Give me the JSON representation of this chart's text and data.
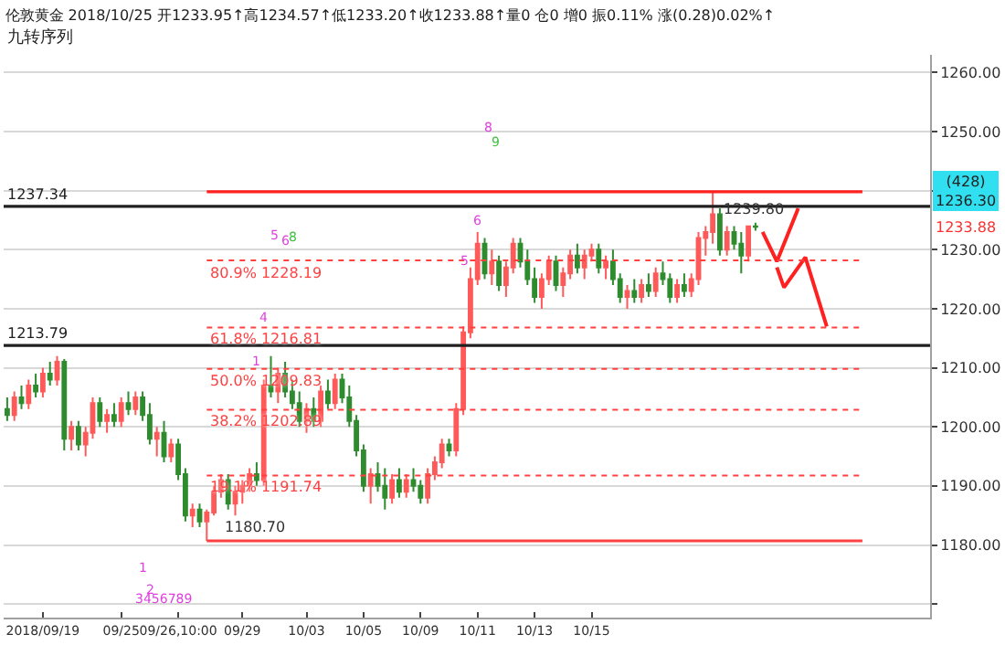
{
  "chart_data": {
    "type": "candlestick",
    "title": "伦敦黄金 2018/10/25 开1233.95↑高1234.57↑低1233.20↑收1233.88↑量0 仓0 增0 振0.11% 涨(0.28)0.02%↑",
    "subtitle": "九转序列",
    "categories": [
      null,
      null,
      null,
      null,
      null,
      "2018/09/19",
      null,
      null,
      null,
      null,
      null,
      null,
      null,
      null,
      null,
      null,
      "09/25",
      null,
      null,
      null,
      null,
      null,
      null,
      null,
      "09/26,10:00",
      null,
      null,
      null,
      null,
      null,
      null,
      null,
      null,
      "09/29",
      null,
      null,
      null,
      null,
      null,
      null,
      null,
      null,
      "10/03",
      null,
      null,
      null,
      null,
      null,
      null,
      null,
      "10/05",
      null,
      null,
      null,
      null,
      null,
      null,
      null,
      "10/09",
      null,
      null,
      null,
      null,
      null,
      null,
      null,
      "10/11",
      null,
      null,
      null,
      null,
      null,
      null,
      null,
      "10/13",
      null,
      null,
      null,
      null,
      null,
      null,
      null,
      "10/15",
      null,
      null,
      null,
      null,
      null,
      null,
      null,
      null,
      null,
      null,
      null,
      null,
      null,
      null,
      null,
      null,
      null,
      null,
      null,
      null,
      null,
      null,
      null,
      null,
      null,
      null,
      null,
      null,
      null,
      null,
      null,
      null,
      null,
      null,
      null,
      null,
      null,
      null,
      null,
      null,
      null,
      null,
      null,
      null,
      null,
      null,
      null
    ],
    "ohlc": [
      [
        1203,
        1205,
        1201,
        1202
      ],
      [
        1202,
        1206,
        1201,
        1205
      ],
      [
        1205,
        1207,
        1203,
        1204
      ],
      [
        1204,
        1208,
        1203,
        1207
      ],
      [
        1207,
        1209,
        1205,
        1206
      ],
      [
        1206,
        1210,
        1205,
        1209
      ],
      [
        1209,
        1211,
        1207,
        1208
      ],
      [
        1208,
        1212,
        1207,
        1211
      ],
      [
        1211,
        1211.5,
        1196,
        1198
      ],
      [
        1198,
        1201,
        1196,
        1200
      ],
      [
        1200,
        1201,
        1196,
        1197
      ],
      [
        1197,
        1200,
        1195,
        1199
      ],
      [
        1199,
        1205,
        1198,
        1204
      ],
      [
        1204,
        1205,
        1200,
        1201
      ],
      [
        1201,
        1203,
        1199,
        1202
      ],
      [
        1202,
        1204,
        1200,
        1201
      ],
      [
        1201,
        1205,
        1200,
        1204
      ],
      [
        1204,
        1206,
        1202,
        1203
      ],
      [
        1203,
        1206,
        1202,
        1205
      ],
      [
        1205,
        1206,
        1201,
        1202
      ],
      [
        1202,
        1204,
        1197,
        1198
      ],
      [
        1198,
        1200,
        1195,
        1199
      ],
      [
        1199,
        1201,
        1194,
        1195
      ],
      [
        1195,
        1198,
        1194,
        1197
      ],
      [
        1197,
        1198,
        1191,
        1192
      ],
      [
        1192,
        1193,
        1184,
        1185
      ],
      [
        1185,
        1187,
        1183,
        1186
      ],
      [
        1186,
        1187,
        1183,
        1184
      ],
      [
        1184,
        1186,
        1180.7,
        1185.5
      ],
      [
        1185.5,
        1190,
        1185,
        1189
      ],
      [
        1189,
        1192,
        1188,
        1191
      ],
      [
        1191,
        1192,
        1186,
        1187
      ],
      [
        1187,
        1190,
        1185,
        1189
      ],
      [
        1189,
        1191,
        1187,
        1190
      ],
      [
        1190,
        1193,
        1189,
        1192
      ],
      [
        1192,
        1194,
        1190,
        1191
      ],
      [
        1191,
        1208,
        1190,
        1207
      ],
      [
        1207,
        1212,
        1205,
        1206
      ],
      [
        1206,
        1210,
        1204,
        1209
      ],
      [
        1209,
        1211,
        1205,
        1206
      ],
      [
        1206,
        1208,
        1203,
        1204
      ],
      [
        1204,
        1206,
        1200,
        1201
      ],
      [
        1201,
        1204,
        1199,
        1203
      ],
      [
        1203,
        1205,
        1200,
        1201
      ],
      [
        1201,
        1207,
        1200,
        1206
      ],
      [
        1206,
        1208,
        1203,
        1204
      ],
      [
        1204,
        1209,
        1203,
        1208
      ],
      [
        1208,
        1209,
        1204,
        1205
      ],
      [
        1205,
        1207,
        1200,
        1201
      ],
      [
        1201,
        1202,
        1195,
        1196
      ],
      [
        1196,
        1197,
        1189,
        1190
      ],
      [
        1190,
        1193,
        1187,
        1192
      ],
      [
        1192,
        1194,
        1189,
        1190
      ],
      [
        1190,
        1193,
        1186,
        1188
      ],
      [
        1188,
        1192,
        1187,
        1191
      ],
      [
        1191,
        1193,
        1188,
        1189
      ],
      [
        1189,
        1192,
        1188,
        1191
      ],
      [
        1191,
        1193,
        1189,
        1190
      ],
      [
        1190,
        1191,
        1187,
        1188
      ],
      [
        1188,
        1193,
        1187,
        1192
      ],
      [
        1192,
        1195,
        1191,
        1194
      ],
      [
        1194,
        1198,
        1193,
        1197
      ],
      [
        1197,
        1198,
        1195,
        1196
      ],
      [
        1196,
        1204,
        1195,
        1203
      ],
      [
        1203,
        1217,
        1202,
        1216
      ],
      [
        1216,
        1227,
        1215,
        1225
      ],
      [
        1225,
        1233,
        1224,
        1231
      ],
      [
        1231,
        1232,
        1225,
        1226
      ],
      [
        1226,
        1230,
        1224,
        1228
      ],
      [
        1228,
        1229,
        1223,
        1224
      ],
      [
        1224,
        1228,
        1222,
        1227
      ],
      [
        1227,
        1232,
        1226,
        1231
      ],
      [
        1231,
        1232,
        1227,
        1228
      ],
      [
        1228,
        1230,
        1224,
        1225
      ],
      [
        1225,
        1227,
        1221,
        1222
      ],
      [
        1222,
        1226,
        1220,
        1225
      ],
      [
        1225,
        1229,
        1224,
        1228
      ],
      [
        1228,
        1229,
        1223,
        1224
      ],
      [
        1224,
        1227,
        1222,
        1226
      ],
      [
        1226,
        1230,
        1225,
        1229
      ],
      [
        1229,
        1231,
        1226,
        1227
      ],
      [
        1227,
        1230,
        1225,
        1229
      ],
      [
        1229,
        1231,
        1228,
        1230
      ],
      [
        1230,
        1231,
        1226,
        1227
      ],
      [
        1227,
        1229,
        1225,
        1228
      ],
      [
        1228,
        1230,
        1224,
        1225
      ],
      [
        1225,
        1226,
        1221,
        1222
      ],
      [
        1222,
        1224,
        1220,
        1223
      ],
      [
        1223,
        1225,
        1221,
        1222
      ],
      [
        1222,
        1225,
        1221,
        1224
      ],
      [
        1224,
        1226,
        1222,
        1223
      ],
      [
        1223,
        1227,
        1222,
        1226
      ],
      [
        1226,
        1228,
        1224,
        1225
      ],
      [
        1225,
        1226,
        1221,
        1222
      ],
      [
        1222,
        1225,
        1221,
        1224
      ],
      [
        1224,
        1226,
        1222,
        1223
      ],
      [
        1223,
        1226,
        1222,
        1225
      ],
      [
        1225,
        1233,
        1224,
        1232
      ],
      [
        1232,
        1234,
        1229,
        1233
      ],
      [
        1233,
        1239.8,
        1231,
        1236
      ],
      [
        1236,
        1237,
        1229,
        1230
      ],
      [
        1230,
        1234,
        1229,
        1233
      ],
      [
        1233,
        1234,
        1230,
        1231
      ],
      [
        1231,
        1233,
        1226,
        1229
      ],
      [
        1229,
        1234,
        1228,
        1233.95
      ],
      [
        1233.95,
        1234.57,
        1233.2,
        1233.88
      ],
      null,
      null,
      null,
      null,
      null,
      null,
      null,
      null,
      null,
      null,
      null,
      null,
      null,
      null,
      null,
      null,
      null,
      null,
      null,
      null,
      null,
      null,
      null,
      null
    ],
    "series": [
      {
        "type": "line",
        "color": "#ff2020",
        "values": [
          null,
          null,
          null,
          null,
          null,
          null,
          null,
          null,
          null,
          null,
          null,
          null,
          null,
          null,
          null,
          null,
          null,
          null,
          null,
          null,
          null,
          null,
          null,
          null,
          null,
          null,
          null,
          null,
          null,
          null,
          null,
          null,
          null,
          null,
          null,
          null,
          null,
          null,
          null,
          null,
          null,
          null,
          null,
          null,
          null,
          null,
          null,
          null,
          null,
          null,
          null,
          null,
          null,
          null,
          null,
          null,
          null,
          null,
          null,
          null,
          null,
          null,
          null,
          null,
          null,
          null,
          null,
          null,
          null,
          null,
          null,
          null,
          null,
          null,
          null,
          null,
          null,
          null,
          null,
          null,
          null,
          null,
          null,
          null,
          null,
          null,
          null,
          null,
          null,
          null,
          null,
          null,
          null,
          null,
          null,
          null,
          null,
          null,
          null,
          null,
          null,
          null,
          null,
          null,
          null,
          null,
          1233,
          null,
          1228,
          null,
          null,
          1237,
          null,
          null,
          null,
          null,
          null,
          null,
          null,
          null,
          null,
          null,
          null,
          null,
          null,
          null,
          null,
          null,
          null,
          null
        ]
      },
      {
        "type": "line",
        "color": "#ff2020",
        "values": [
          null,
          null,
          null,
          null,
          null,
          null,
          null,
          null,
          null,
          null,
          null,
          null,
          null,
          null,
          null,
          null,
          null,
          null,
          null,
          null,
          null,
          null,
          null,
          null,
          null,
          null,
          null,
          null,
          null,
          null,
          null,
          null,
          null,
          null,
          null,
          null,
          null,
          null,
          null,
          null,
          null,
          null,
          null,
          null,
          null,
          null,
          null,
          null,
          null,
          null,
          null,
          null,
          null,
          null,
          null,
          null,
          null,
          null,
          null,
          null,
          null,
          null,
          null,
          null,
          null,
          null,
          null,
          null,
          null,
          null,
          null,
          null,
          null,
          null,
          null,
          null,
          null,
          null,
          null,
          null,
          null,
          null,
          null,
          null,
          null,
          null,
          null,
          null,
          null,
          null,
          null,
          null,
          null,
          null,
          null,
          null,
          null,
          null,
          null,
          null,
          null,
          null,
          null,
          null,
          null,
          null,
          null,
          null,
          1227,
          1223.6,
          null,
          null,
          1228.7,
          null,
          null,
          1217,
          null,
          null,
          null,
          null,
          null,
          null,
          null,
          null,
          null,
          null,
          null,
          null,
          null,
          null
        ]
      }
    ],
    "ylim": [
      1167.7,
      1263
    ],
    "yticks": [
      {
        "value": 1170,
        "label": null
      },
      {
        "value": 1180,
        "label": "1180.00"
      },
      {
        "value": 1190,
        "label": "1190.00"
      },
      {
        "value": 1200,
        "label": "1200.00"
      },
      {
        "value": 1210,
        "label": "1210.00"
      },
      {
        "value": 1220,
        "label": "1220.00"
      },
      {
        "value": 1230,
        "label": "1230.00"
      },
      {
        "value": 1240,
        "label": null
      },
      {
        "value": 1250,
        "label": "1250.00"
      },
      {
        "value": 1260,
        "label": "1260.00"
      }
    ],
    "grid": "y",
    "ref_lines": [
      {
        "axis": "y",
        "value": 1237.34,
        "label": "1237.34",
        "color": "#202020",
        "line_style": "solid"
      },
      {
        "axis": "y",
        "value": 1213.79,
        "label": "1213.79",
        "color": "#202020",
        "line_style": "solid"
      },
      {
        "axis": "y",
        "value": 1239.8,
        "label": "1239.80",
        "color": "#ff2020",
        "line_style": "solid"
      },
      {
        "axis": "y",
        "value": 1180.7,
        "label": "1180.70",
        "color": "#ff4040",
        "line_style": "solid"
      },
      {
        "axis": "y",
        "value": 1228.19,
        "label": "80.9% 1228.19",
        "color": "#ff4040",
        "line_style": "dotted"
      },
      {
        "axis": "y",
        "value": 1216.81,
        "label": "61.8% 1216.81",
        "color": "#ff4040",
        "line_style": "dotted"
      },
      {
        "axis": "y",
        "value": 1209.83,
        "label": "50.0% 1209.83",
        "color": "#ff4040",
        "line_style": "dotted"
      },
      {
        "axis": "y",
        "value": 1202.89,
        "label": "38.2% 1202.89",
        "color": "#ff4040",
        "line_style": "dotted"
      },
      {
        "axis": "y",
        "value": 1191.74,
        "label": "19.1% 1191.74",
        "color": "#ff4040",
        "line_style": "dotted"
      }
    ],
    "annotations": [
      "1233.88",
      "(428)\n1236.30",
      "1",
      "2",
      "3456789",
      "1",
      "4",
      "5",
      "6",
      "8",
      "5",
      "6",
      "8",
      "9"
    ]
  }
}
